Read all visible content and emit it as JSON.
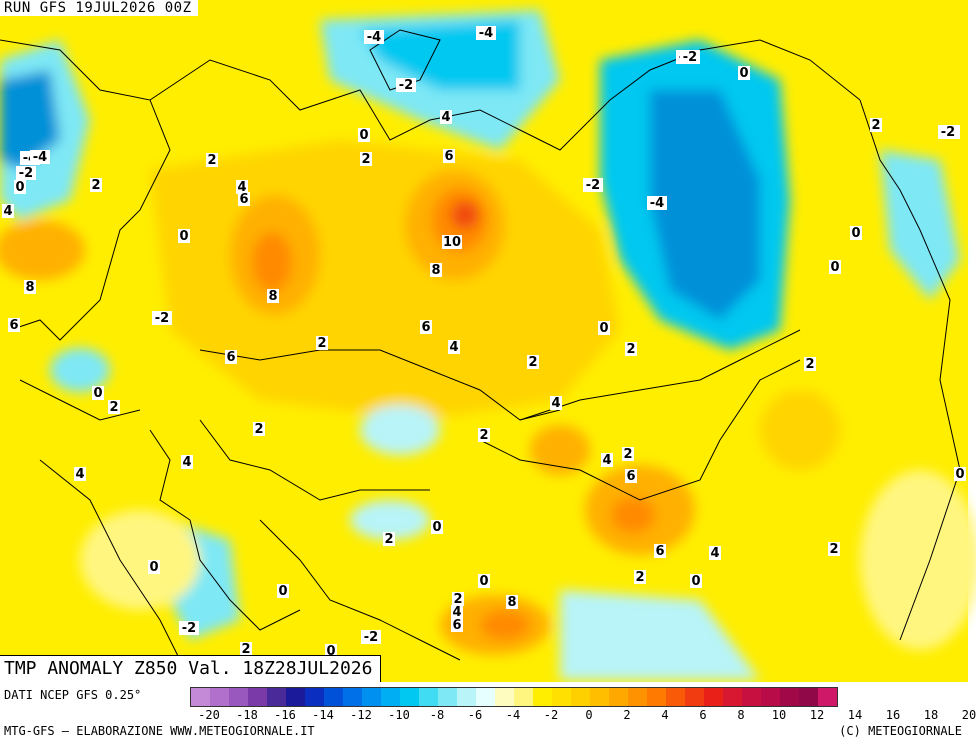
{
  "header": {
    "run_label": "RUN GFS 19JUL2026 00Z"
  },
  "map": {
    "title": "TMP ANOMALY Z850 Val. 18Z28JUL2026",
    "palette": {
      "neg4": "#00c8f0",
      "neg2": "#7ee8f5",
      "zero": "#e6ffff",
      "pos0": "#fff9a0",
      "pos2": "#ffee00",
      "pos4": "#ffd400",
      "pos6": "#ffb000",
      "pos8": "#ff8a00",
      "pos10": "#f04a10",
      "neg6": "#0090d8"
    },
    "contour_labels": [
      {
        "text": "-4"
      },
      {
        "text": "-4"
      },
      {
        "text": "-2"
      },
      {
        "text": "0"
      },
      {
        "text": "-2"
      },
      {
        "text": "4"
      },
      {
        "text": "0"
      },
      {
        "text": "2"
      },
      {
        "text": "6"
      },
      {
        "text": "2"
      },
      {
        "text": "2"
      },
      {
        "text": "4"
      },
      {
        "text": "6"
      },
      {
        "text": "10"
      },
      {
        "text": "-4"
      },
      {
        "text": "-2"
      },
      {
        "text": "0"
      },
      {
        "text": "8"
      },
      {
        "text": "8"
      },
      {
        "text": "6"
      },
      {
        "text": "4"
      },
      {
        "text": "2"
      },
      {
        "text": "-2"
      },
      {
        "text": "6"
      },
      {
        "text": "0"
      },
      {
        "text": "2"
      },
      {
        "text": "2"
      },
      {
        "text": "4"
      },
      {
        "text": "2"
      },
      {
        "text": "4"
      },
      {
        "text": "2"
      },
      {
        "text": "6"
      },
      {
        "text": "4"
      },
      {
        "text": "6"
      },
      {
        "text": "0"
      },
      {
        "text": "2"
      },
      {
        "text": "0"
      },
      {
        "text": "2"
      },
      {
        "text": "4"
      },
      {
        "text": "0"
      },
      {
        "text": "0"
      },
      {
        "text": "2"
      },
      {
        "text": "8"
      },
      {
        "text": "4"
      },
      {
        "text": "6"
      },
      {
        "text": "0"
      },
      {
        "text": "2"
      },
      {
        "text": "-2"
      },
      {
        "text": "2"
      },
      {
        "text": "0"
      },
      {
        "text": "-2"
      },
      {
        "text": "2"
      },
      {
        "text": "-4"
      },
      {
        "text": "-2"
      },
      {
        "text": "0"
      },
      {
        "text": "2"
      },
      {
        "text": "0"
      },
      {
        "text": "-2"
      },
      {
        "text": "4"
      },
      {
        "text": "8"
      },
      {
        "text": "0"
      },
      {
        "text": "-4"
      },
      {
        "text": "4"
      },
      {
        "text": "6"
      },
      {
        "text": "2"
      },
      {
        "text": "-2"
      },
      {
        "text": "0"
      },
      {
        "text": "2"
      },
      {
        "text": "-2"
      },
      {
        "text": "0"
      },
      {
        "text": "0"
      }
    ]
  },
  "legend": {
    "colors": [
      "#c48ad8",
      "#b070cc",
      "#9858be",
      "#7a3aa8",
      "#4a2a98",
      "#1a1a9a",
      "#0a2ec0",
      "#0050d8",
      "#0070e8",
      "#0090f0",
      "#00aef4",
      "#00c8f0",
      "#40dcf4",
      "#7ee8f5",
      "#b8f4f8",
      "#e6ffff",
      "#fffcc0",
      "#fff680",
      "#ffee00",
      "#ffe000",
      "#ffd000",
      "#ffbe00",
      "#ffa800",
      "#ff9200",
      "#ff7a00",
      "#f85a08",
      "#f03c10",
      "#e82018",
      "#d81830",
      "#c81040",
      "#b80c48",
      "#a00848",
      "#900848",
      "#d01868"
    ],
    "ticks": [
      "-20",
      "-18",
      "-16",
      "-14",
      "-12",
      "-10",
      "-8",
      "-6",
      "-4",
      "-2",
      "0",
      "2",
      "4",
      "6",
      "8",
      "10",
      "12",
      "14",
      "16",
      "18",
      "20"
    ]
  },
  "footer": {
    "data_source": "DATI NCEP GFS 0.25°",
    "credits": "MTG-GFS — ELABORAZIONE WWW.METEOGIORNALE.IT",
    "copyright": "(C) METEOGIORNALE"
  }
}
